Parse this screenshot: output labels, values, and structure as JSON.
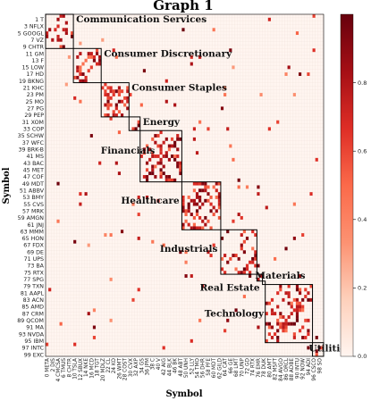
{
  "chart_data": {
    "type": "heatmap",
    "title": "Graph 1",
    "xlabel": "Symbol",
    "ylabel": "Symbol",
    "y_tick_labels": [
      "1 T",
      "3 NFLX",
      "5 GOOGL",
      "7 VZ",
      "9 CHTR",
      "11 GM",
      "13 F",
      "15 LOW",
      "17 HD",
      "19 BKNG",
      "21 KHC",
      "23 PM",
      "25 MO",
      "27 PG",
      "29 PEP",
      "31 XOM",
      "33 COP",
      "35 SCHW",
      "37 WFC",
      "39 BRK-B",
      "41 MS",
      "43 BAC",
      "45 MET",
      "47 COF",
      "49 MDT",
      "51 ABBV",
      "53 BMY",
      "55 CVS",
      "57 MRK",
      "59 AMGN",
      "61 JNJ",
      "63 MMM",
      "65 HON",
      "67 FDX",
      "69 DE",
      "71 UPS",
      "73 BA",
      "75 RTX",
      "77 SPG",
      "79 TXN",
      "81 AAPL",
      "83 ACN",
      "85 AMD",
      "87 CRM",
      "89 QCOM",
      "91 MA",
      "93 NVDA",
      "95 IBM",
      "97 INTC",
      "99 EXC"
    ],
    "x_tick_labels": [
      "0 META",
      "2 DIS",
      "4 CMCSA",
      "6 TMUS",
      "8 CHTR",
      "10 TSLA",
      "12 SBUX",
      "14 NKE",
      "16 MCD",
      "18 TGT",
      "20 MDLZ",
      "22 CL",
      "24 KO",
      "26 WMT",
      "28 COST",
      "30 CVX",
      "32 AXP",
      "34 GS",
      "36 JPM",
      "38 C",
      "40 V",
      "42 AIG",
      "44 BLK",
      "46 BK",
      "48 ABT",
      "50 UNH",
      "52 LLY",
      "54 TMO",
      "56 DHR",
      "58 PFE",
      "60 MDT",
      "62 GILD",
      "64 CAT",
      "66 GE",
      "68 LMT",
      "70 UNP",
      "72 GD",
      "74 RTX",
      "76 EMR",
      "78 DUK",
      "80 AMT",
      "82 MSFT",
      "84 AVGO",
      "86 ORCL",
      "88 ADBE",
      "90 INTU",
      "92 NOW",
      "94 ADI",
      "96 CSCO",
      "98 SO"
    ],
    "sectors": [
      {
        "name": "Communication Services",
        "start": 0,
        "end": 9
      },
      {
        "name": "Consumer Discretionary",
        "start": 10,
        "end": 19
      },
      {
        "name": "Consumer Staples",
        "start": 20,
        "end": 29
      },
      {
        "name": "Energy",
        "start": 30,
        "end": 33
      },
      {
        "name": "Financials",
        "start": 34,
        "end": 48
      },
      {
        "name": "Healthcare",
        "start": 49,
        "end": 62
      },
      {
        "name": "Industrials",
        "start": 63,
        "end": 75
      },
      {
        "name": "Materials",
        "start": 76,
        "end": 77
      },
      {
        "name": "Real Estate",
        "start": 78,
        "end": 78
      },
      {
        "name": "Technology",
        "start": 79,
        "end": 95
      },
      {
        "name": "Utilities",
        "start": 96,
        "end": 99
      }
    ],
    "n": 100,
    "in_block_density": 0.32,
    "off_block_density": 0.012,
    "value_range": [
      0.0,
      1.0
    ],
    "colorbar_ticks": [
      "0.0",
      "0.2",
      "0.4",
      "0.6",
      "0.8"
    ],
    "colormap": [
      "#fff5f0",
      "#fdd0bb",
      "#fc9272",
      "#fb6a4a",
      "#de2d26",
      "#a50f15",
      "#67000d"
    ]
  }
}
